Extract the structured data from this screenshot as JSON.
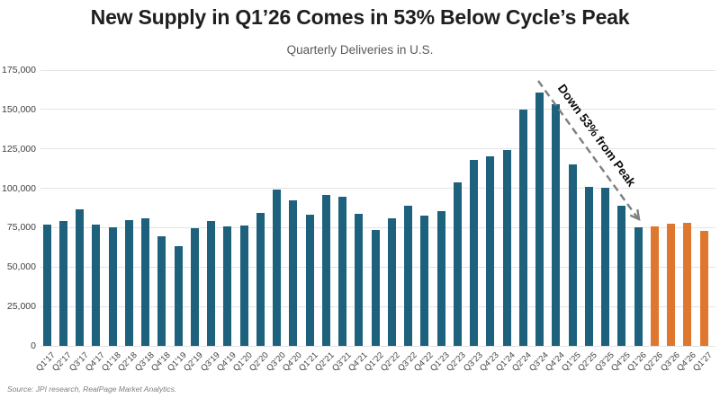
{
  "header": {
    "title": "New Supply in Q1’26 Comes in 53% Below Cycle’s Peak",
    "subtitle": "Quarterly Deliveries in U.S."
  },
  "annotation": {
    "label": "Down 53% from Peak"
  },
  "source_note": "Source: JPI research, RealPage Market Analytics.",
  "colors": {
    "bar_actual": "#1e617d",
    "bar_forecast": "#e0772e",
    "gridline": "#e3e3e3",
    "axis_text": "#404040",
    "arrow": "#7f7f7f"
  },
  "chart_data": {
    "type": "bar",
    "title": "New Supply in Q1’26 Comes in 53% Below Cycle’s Peak",
    "subtitle": "Quarterly Deliveries in U.S.",
    "xlabel": "",
    "ylabel": "",
    "ylim": [
      0,
      175000
    ],
    "ytick_interval": 25000,
    "ytick_labels": [
      "0",
      "25,000",
      "50,000",
      "75,000",
      "100,000",
      "125,000",
      "150,000",
      "175,000"
    ],
    "grid": true,
    "legend": "none",
    "annotation": "Down 53% from Peak",
    "categories": [
      "Q1'17",
      "Q2'17",
      "Q3'17",
      "Q4'17",
      "Q1'18",
      "Q2'18",
      "Q3'18",
      "Q4'18",
      "Q1'19",
      "Q2'19",
      "Q3'19",
      "Q4'19",
      "Q1'20",
      "Q2'20",
      "Q3'20",
      "Q4'20",
      "Q1'21",
      "Q2'21",
      "Q3'21",
      "Q4'21",
      "Q1'22",
      "Q2'22",
      "Q3'22",
      "Q4'22",
      "Q1'23",
      "Q2'23",
      "Q3'23",
      "Q4'23",
      "Q1'24",
      "Q2'24",
      "Q3'24",
      "Q4'24",
      "Q1'25",
      "Q2'25",
      "Q3'25",
      "Q4'25",
      "Q1'26",
      "Q2'26",
      "Q3'26",
      "Q4'26",
      "Q1'27"
    ],
    "values": [
      77000,
      79000,
      86500,
      77000,
      75500,
      80000,
      81000,
      69500,
      63500,
      74500,
      79500,
      76000,
      76500,
      84500,
      99000,
      92500,
      83500,
      95500,
      94500,
      84000,
      73500,
      81000,
      89000,
      82500,
      85500,
      103500,
      118000,
      120500,
      124500,
      150000,
      160500,
      153500,
      115000,
      101000,
      100500,
      89000,
      75000,
      76000,
      77500,
      78000,
      73000
    ],
    "forecast_start_index": 37,
    "series_note": "bars from forecast_start_index onward are drawn in bar_forecast color (forecast quarters), earlier bars in bar_actual color"
  }
}
